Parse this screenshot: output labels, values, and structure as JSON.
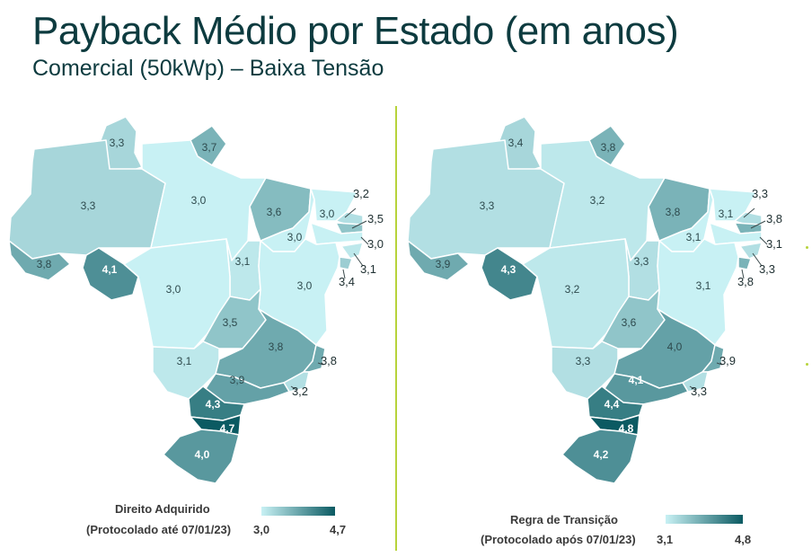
{
  "header": {
    "title": "Payback Médio por Estado (em anos)",
    "subtitle": "Comercial (50kWp) – Baixa Tensão"
  },
  "colors": {
    "scale_low": "#c8f1f4",
    "scale_high": "#0b5a62",
    "divider": "#b7d33b"
  },
  "maps": [
    {
      "legend": {
        "title": "Direito Adquirido",
        "subtitle": "(Protocolado até 07/01/23)",
        "min": "3,0",
        "max": "4,7",
        "min_value": 3.0,
        "max_value": 4.7
      },
      "states": {
        "RR": {
          "label": "3,3",
          "value": 3.3
        },
        "AP": {
          "label": "3,7",
          "value": 3.7
        },
        "AM": {
          "label": "3,3",
          "value": 3.3
        },
        "PA": {
          "label": "3,0",
          "value": 3.0
        },
        "MA": {
          "label": "3,6",
          "value": 3.6
        },
        "CE": {
          "label": "3,0",
          "value": 3.0
        },
        "PI": {
          "label": "3,0",
          "value": 3.0
        },
        "AC": {
          "label": "3,8",
          "value": 3.8
        },
        "RO": {
          "label": "4,1",
          "value": 4.1
        },
        "TO": {
          "label": "3,1",
          "value": 3.1
        },
        "MT": {
          "label": "3,0",
          "value": 3.0
        },
        "BA": {
          "label": "3,0",
          "value": 3.0
        },
        "GO": {
          "label": "3,5",
          "value": 3.5
        },
        "MG": {
          "label": "3,8",
          "value": 3.8
        },
        "MS": {
          "label": "3,1",
          "value": 3.1
        },
        "SP": {
          "label": "3,9",
          "value": 3.9
        },
        "PR": {
          "label": "4,3",
          "value": 4.3
        },
        "SC": {
          "label": "4,7",
          "value": 4.7
        },
        "RS": {
          "label": "4,0",
          "value": 4.0
        },
        "RN": {
          "label": "3,2",
          "value": 3.2
        },
        "PB": {
          "label": "3,5",
          "value": 3.5
        },
        "PE": {
          "label": "3,0",
          "value": 3.0
        },
        "AL": {
          "label": "3,1",
          "value": 3.1
        },
        "SE": {
          "label": "3,4",
          "value": 3.4
        },
        "ES": {
          "label": "3,8",
          "value": 3.8
        },
        "RJ": {
          "label": "3,2",
          "value": 3.2
        }
      }
    },
    {
      "legend": {
        "title": "Regra de Transição",
        "subtitle": "(Protocolado após 07/01/23)",
        "min": "3,1",
        "max": "4,8",
        "min_value": 3.1,
        "max_value": 4.8
      },
      "states": {
        "RR": {
          "label": "3,4",
          "value": 3.4
        },
        "AP": {
          "label": "3,8",
          "value": 3.8
        },
        "AM": {
          "label": "3,3",
          "value": 3.3
        },
        "PA": {
          "label": "3,2",
          "value": 3.2
        },
        "MA": {
          "label": "3,8",
          "value": 3.8
        },
        "CE": {
          "label": "3,1",
          "value": 3.1
        },
        "PI": {
          "label": "3,1",
          "value": 3.1
        },
        "AC": {
          "label": "3,9",
          "value": 3.9
        },
        "RO": {
          "label": "4,3",
          "value": 4.3
        },
        "TO": {
          "label": "3,3",
          "value": 3.3
        },
        "MT": {
          "label": "3,2",
          "value": 3.2
        },
        "BA": {
          "label": "3,1",
          "value": 3.1
        },
        "GO": {
          "label": "3,6",
          "value": 3.6
        },
        "MG": {
          "label": "4,0",
          "value": 4.0
        },
        "MS": {
          "label": "3,3",
          "value": 3.3
        },
        "SP": {
          "label": "4,1",
          "value": 4.1
        },
        "PR": {
          "label": "4,4",
          "value": 4.4
        },
        "SC": {
          "label": "4,8",
          "value": 4.8
        },
        "RS": {
          "label": "4,2",
          "value": 4.2
        },
        "RN": {
          "label": "3,3",
          "value": 3.3
        },
        "PB": {
          "label": "3,8",
          "value": 3.8
        },
        "PE": {
          "label": "3,1",
          "value": 3.1
        },
        "AL": {
          "label": "3,3",
          "value": 3.3
        },
        "SE": {
          "label": "3,8",
          "value": 3.8
        },
        "ES": {
          "label": "3,9",
          "value": 3.9
        },
        "RJ": {
          "label": "3,3",
          "value": 3.3
        }
      }
    }
  ]
}
